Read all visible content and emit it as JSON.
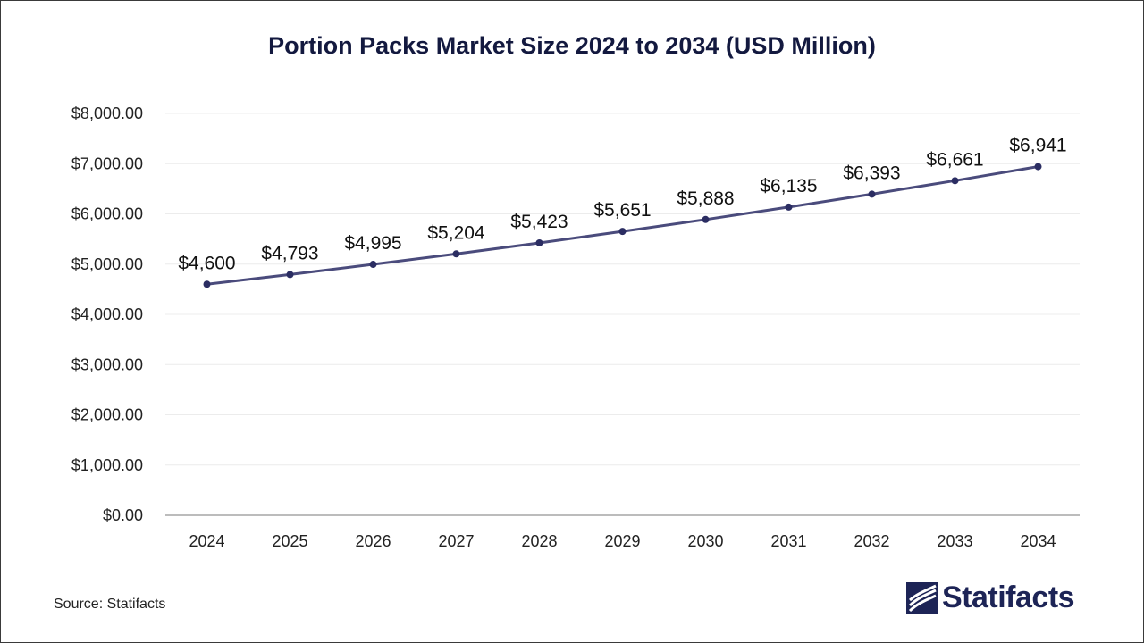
{
  "chart_data": {
    "type": "line",
    "title": "Portion Packs Market Size 2024 to 2034 (USD Million)",
    "categories": [
      "2024",
      "2025",
      "2026",
      "2027",
      "2028",
      "2029",
      "2030",
      "2031",
      "2032",
      "2033",
      "2034"
    ],
    "series": [
      {
        "values": [
          4600,
          4793,
          4995,
          5204,
          5423,
          5651,
          5888,
          6135,
          6393,
          6661,
          6941
        ],
        "labels": [
          "$4,600",
          "$4,793",
          "$4,995",
          "$5,204",
          "$5,423",
          "$5,651",
          "$5,888",
          "$6,135",
          "$6,393",
          "$6,661",
          "$6,941"
        ]
      }
    ],
    "y_ticks": [
      0,
      1000,
      2000,
      3000,
      4000,
      5000,
      6000,
      7000,
      8000
    ],
    "y_tick_labels": [
      "$0.00",
      "$1,000.00",
      "$2,000.00",
      "$3,000.00",
      "$4,000.00",
      "$5,000.00",
      "$6,000.00",
      "$7,000.00",
      "$8,000.00"
    ],
    "ylim": [
      0,
      8000
    ],
    "grid": true,
    "colors": {
      "line": "#4a4b7c",
      "marker": "#2b2d62",
      "grid": "#ececec",
      "axis": "#a6a6a6"
    }
  },
  "source": "Source: Statifacts",
  "logo": {
    "text": "Statifacts",
    "icon": "statifacts-logo-icon"
  }
}
